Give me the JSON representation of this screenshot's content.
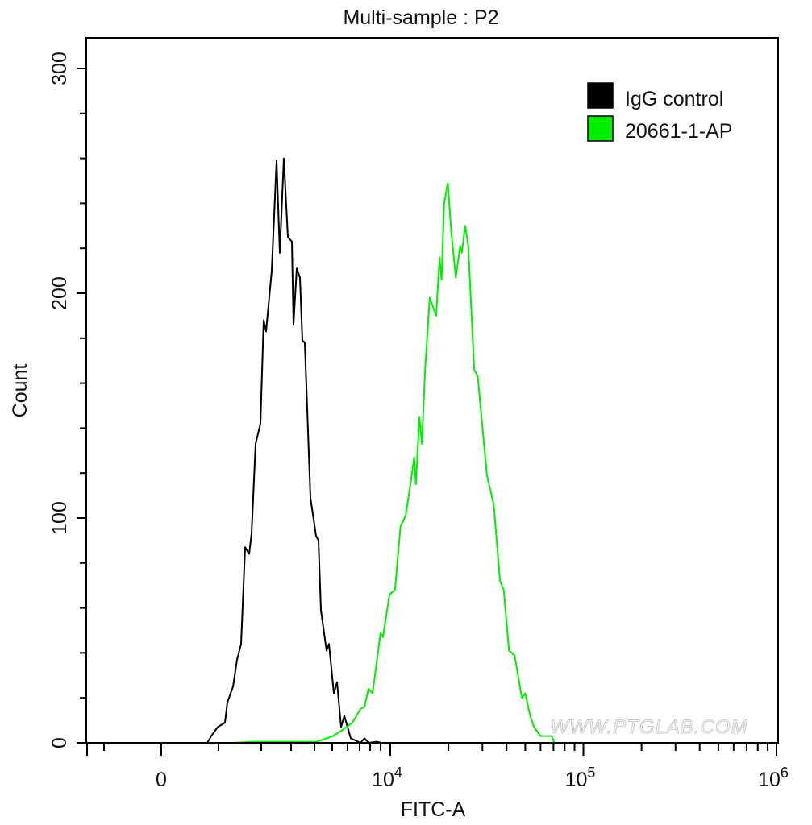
{
  "chart_data": {
    "type": "line",
    "title": "Multi-sample : P2",
    "xlabel": "FITC-A",
    "ylabel": "Count",
    "x_scale": "biexponential",
    "ylim": [
      0,
      300
    ],
    "xlim": [
      -2000,
      1000000
    ],
    "grid": false,
    "legend_placement": "top-right",
    "y_ticks": [
      0,
      100,
      200,
      300
    ],
    "y_tick_labels": [
      "0",
      "100",
      "200",
      "300"
    ],
    "y_minor_step": 20,
    "x_major_ticks": [
      {
        "value": 0,
        "label": "0",
        "exp": ""
      },
      {
        "value": 10000,
        "label": "10",
        "exp": "4"
      },
      {
        "value": 100000,
        "label": "10",
        "exp": "5"
      },
      {
        "value": 1000000,
        "label": "10",
        "exp": "6"
      }
    ],
    "x_minor_ticks": [
      -1000,
      1000,
      2000,
      3000,
      4000,
      5000,
      6000,
      7000,
      8000,
      9000,
      20000,
      30000,
      40000,
      50000,
      60000,
      70000,
      80000,
      90000,
      200000,
      300000,
      400000,
      500000,
      600000,
      700000,
      800000,
      900000
    ],
    "watermark": "WWW.PTGLAB.COM",
    "series": [
      {
        "name": "IgG control",
        "color": "#000000",
        "x": [
          0,
          803,
          873,
          986,
          1151,
          1208,
          1340,
          1434,
          1528,
          1623,
          1717,
          1774,
          1868,
          1981,
          2081,
          2162,
          2351,
          2514,
          2622,
          2757,
          2892,
          3034,
          3103,
          3241,
          3379,
          3483,
          3586,
          3828,
          4091,
          4227,
          4364,
          4682,
          4818,
          5105,
          5316,
          5579,
          5789,
          6267,
          7077,
          7462,
          7846,
          8615,
          9083
        ],
        "y": [
          0,
          0,
          3,
          7,
          9,
          18,
          25,
          37,
          44,
          87,
          84,
          93,
          133,
          142,
          188,
          183,
          210,
          259,
          218,
          260,
          225,
          223,
          186,
          211,
          207,
          179,
          178,
          109,
          92,
          90,
          59,
          41,
          44,
          22,
          27,
          7,
          12,
          2,
          0,
          2,
          0,
          0.5,
          0
        ]
      },
      {
        "name": "20661-1-AP",
        "color": "#00ee00",
        "x": [
          1358,
          1792,
          4136,
          5053,
          5733,
          6400,
          7077,
          7462,
          7846,
          8231,
          9000,
          9250,
          9917,
          10571,
          11286,
          12000,
          12714,
          13286,
          13571,
          14143,
          14571,
          15143,
          16000,
          17286,
          18000,
          18429,
          19000,
          19857,
          20698,
          21860,
          23023,
          23488,
          24419,
          25349,
          27209,
          28372,
          29535,
          31667,
          34333,
          37000,
          38667,
          41200,
          44000,
          48000,
          50000,
          53000,
          55500,
          60000,
          68667,
          70667
        ],
        "y": [
          0,
          0.5,
          0.5,
          3,
          6,
          9,
          15,
          16,
          24,
          22,
          49,
          47,
          66,
          68,
          96,
          101,
          115,
          127,
          115,
          145,
          133,
          166,
          198,
          190,
          216,
          206,
          240,
          249,
          227,
          207,
          221,
          218,
          230,
          221,
          166,
          163,
          147,
          119,
          106,
          72,
          68,
          41,
          39,
          20,
          22,
          12,
          7,
          3,
          3,
          0
        ]
      }
    ]
  }
}
